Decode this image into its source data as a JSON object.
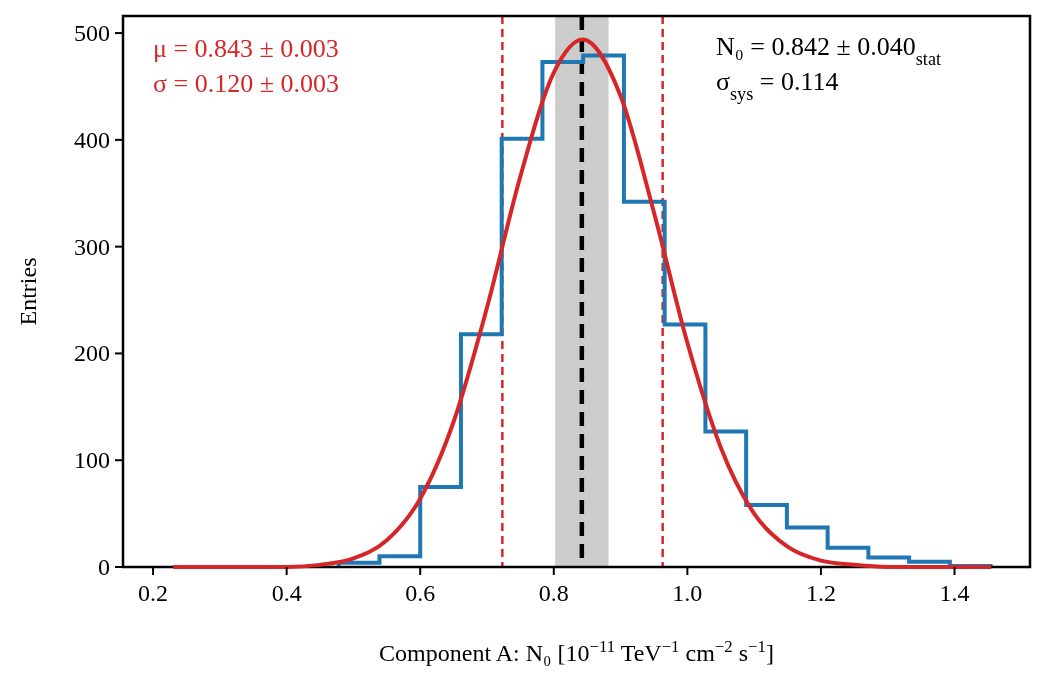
{
  "chart_data": {
    "type": "histogram",
    "xlabel": "Component A: N₀ [10$^{−11}$ TeV$^{−1}$ cm$^{−2}$ s$^{−1}$]",
    "ylabel": "Entries",
    "bins": [
      0.478,
      0.539,
      0.6,
      0.661,
      0.722,
      0.783,
      0.844,
      0.905,
      0.966,
      1.027,
      1.088,
      1.149,
      1.21,
      1.271,
      1.332,
      1.393,
      1.454
    ],
    "series": [
      {
        "type": "histogram",
        "color": "#1f77b4",
        "values": [
          4,
          10,
          75,
          218,
          401,
          473,
          479,
          342,
          227,
          127,
          58,
          37,
          18,
          9,
          5,
          1
        ]
      },
      {
        "type": "line",
        "color": "#d62728",
        "x": [
          0.23,
          0.35,
          0.4,
          0.45,
          0.5,
          0.55,
          0.6,
          0.65,
          0.7,
          0.75,
          0.8,
          0.843,
          0.9,
          0.95,
          1.0,
          1.05,
          1.1,
          1.15,
          1.2,
          1.25,
          1.3,
          1.35,
          1.455
        ],
        "values": [
          0,
          0,
          0,
          2,
          8,
          25,
          64,
          136,
          243,
          366,
          463,
          494,
          441,
          332,
          210,
          112,
          50,
          19,
          6,
          2,
          0,
          0,
          0
        ]
      }
    ],
    "ref_lines": [
      {
        "axis": "x",
        "value": 0.723,
        "color": "#d62728",
        "line_style": "dashed"
      },
      {
        "axis": "x",
        "value": 0.963,
        "color": "#d62728",
        "line_style": "dashed"
      },
      {
        "axis": "x",
        "value": 0.842,
        "color": "#000000",
        "line_style": "dashed"
      }
    ],
    "bands": [
      {
        "axis": "x",
        "from": 0.802,
        "to": 0.882,
        "color": "#cccccc"
      }
    ],
    "annotations": [
      "μ = 0.843 ± 0.003",
      "σ = 0.120 ± 0.003",
      "N₀ = 0.842 ± 0.040$_{stat}$",
      "σ$_{sys}$ = 0.114"
    ],
    "xlim": [
      0.155,
      1.513
    ],
    "ylim": [
      0,
      516
    ],
    "xticks": [
      0.2,
      0.4,
      0.6,
      0.8,
      {
        "value": 1,
        "label": "1.0"
      },
      1.2,
      1.4
    ],
    "yticks": [
      0,
      100,
      200,
      300,
      400,
      500
    ],
    "grid": false
  }
}
